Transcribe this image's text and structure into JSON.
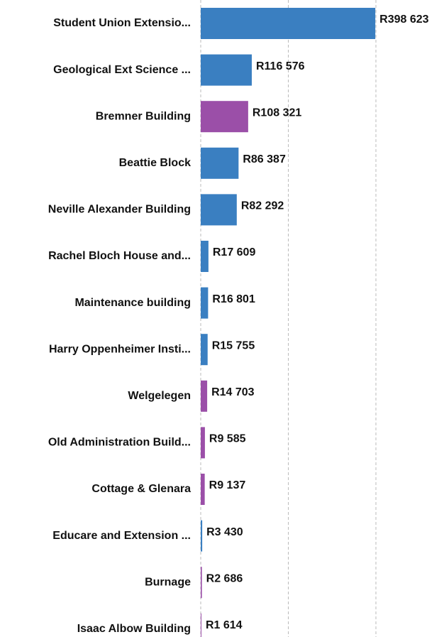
{
  "chart_data": {
    "type": "barh",
    "categories": [
      "Student Union Extensio...",
      "Geological Ext Science ...",
      "Bremner Building",
      "Beattie Block",
      "Neville Alexander Building",
      "Rachel Bloch House and...",
      "Maintenance building",
      "Harry Oppenheimer Insti...",
      "Welgelegen",
      "Old Administration Build...",
      "Cottage & Glenara",
      "Educare and Extension ...",
      "Burnage",
      "Isaac Albow Building"
    ],
    "values": [
      398623,
      116576,
      108321,
      86387,
      82292,
      17609,
      16801,
      15755,
      14703,
      9585,
      9137,
      3430,
      2686,
      1614
    ],
    "value_labels": [
      "R398 623",
      "R116 576",
      "R108 321",
      "R86 387",
      "R82 292",
      "R17 609",
      "R16 801",
      "R15 755",
      "R14 703",
      "R9 585",
      "R9 137",
      "R3 430",
      "R2 686",
      "R1 614"
    ],
    "colors": [
      "#3a7fc1",
      "#3a7fc1",
      "#9b4fa8",
      "#3a7fc1",
      "#3a7fc1",
      "#3a7fc1",
      "#3a7fc1",
      "#3a7fc1",
      "#9b4fa8",
      "#9b4fa8",
      "#9b4fa8",
      "#3a7fc1",
      "#9b4fa8",
      "#9b4fa8"
    ],
    "xlim": [
      0,
      400000
    ],
    "xticks": [
      0,
      200000,
      400000
    ],
    "grid": true
  }
}
